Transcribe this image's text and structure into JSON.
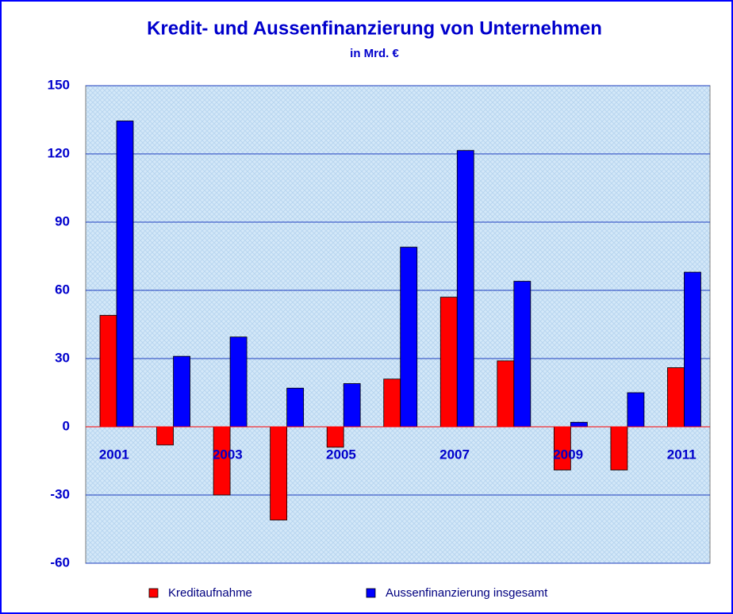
{
  "chart_data": {
    "type": "bar",
    "title": "Kredit- und Aussenfinanzierung von Unternehmen",
    "subtitle": "in Mrd. €",
    "categories": [
      "2001",
      null,
      "2003",
      null,
      "2005",
      null,
      "2007",
      null,
      "2009",
      null,
      "2011"
    ],
    "series": [
      {
        "name": "Kreditaufnahme",
        "color": "#ff0000",
        "values": [
          49,
          -8,
          -30,
          -41,
          -9,
          21,
          57,
          29,
          -19,
          -19,
          26
        ]
      },
      {
        "name": "Aussenfinanzierung insgesamt",
        "color": "#0000ff",
        "values": [
          134.5,
          31,
          39.5,
          17,
          19,
          79,
          121.5,
          64,
          2,
          15,
          68
        ]
      }
    ],
    "ylim": [
      -60,
      150
    ],
    "yticks": [
      -60,
      -30,
      0,
      30,
      60,
      90,
      120,
      150
    ],
    "grid": true,
    "legend": "bottom"
  }
}
